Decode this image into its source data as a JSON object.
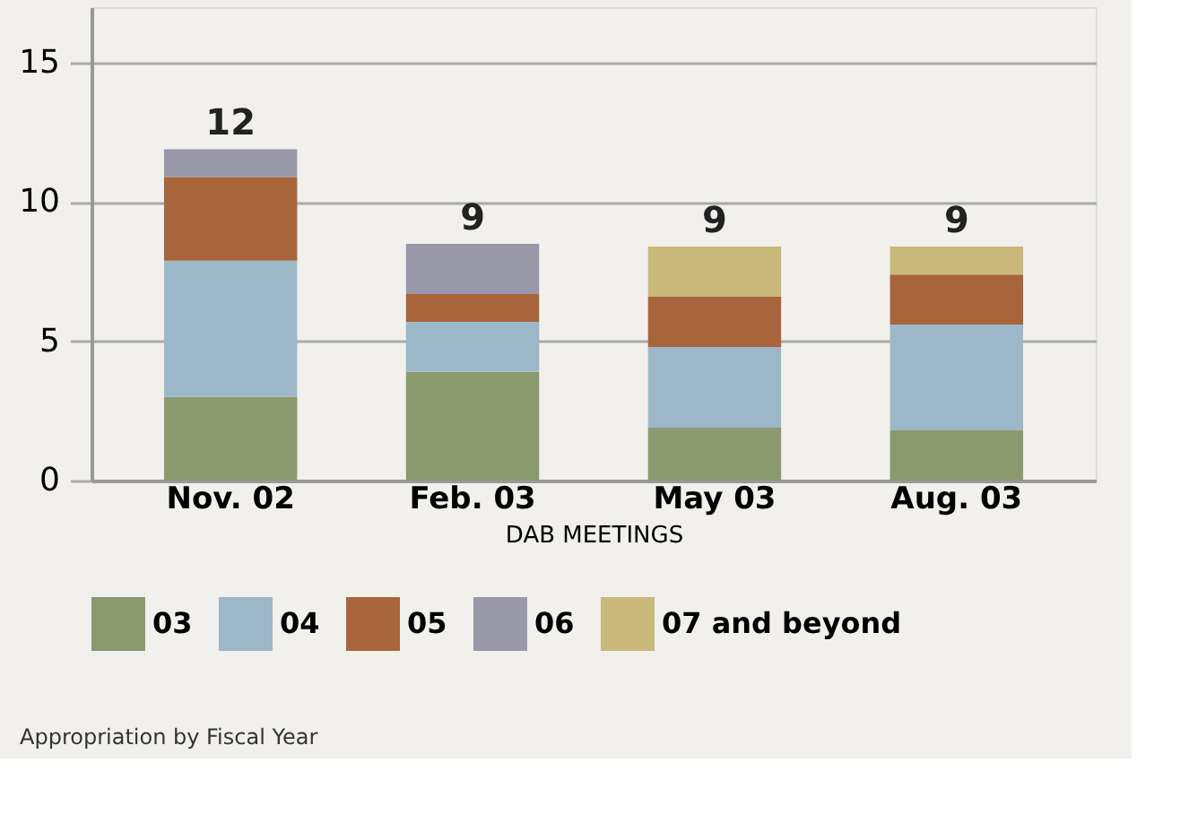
{
  "chart_data": {
    "type": "bar",
    "stacked": true,
    "categories": [
      "Nov. 02",
      "Feb. 03",
      "May 03",
      "Aug. 03"
    ],
    "series": [
      {
        "name": "03",
        "color": "#8a9a6e",
        "values": [
          3,
          3.9,
          1.9,
          1.8
        ]
      },
      {
        "name": "04",
        "color": "#9cb8c8",
        "values": [
          4.9,
          1.8,
          2.9,
          3.8
        ]
      },
      {
        "name": "05",
        "color": "#a8643a",
        "values": [
          3,
          1.0,
          1.8,
          1.8
        ]
      },
      {
        "name": "06",
        "color": "#9898a8",
        "values": [
          1,
          1.8,
          0,
          0
        ]
      },
      {
        "name": "07 and beyond",
        "color": "#c8b87a",
        "values": [
          0,
          0,
          1.8,
          1.0
        ]
      }
    ],
    "totals": [
      "12",
      "9",
      "9",
      "9"
    ],
    "xlabel": "DAB MEETINGS",
    "ylim": [
      0,
      17
    ],
    "yticks": [
      0,
      5,
      10,
      15
    ],
    "grid": "y",
    "legend": "bottom",
    "annotations": [
      "Appropriation by Fiscal Year"
    ]
  }
}
